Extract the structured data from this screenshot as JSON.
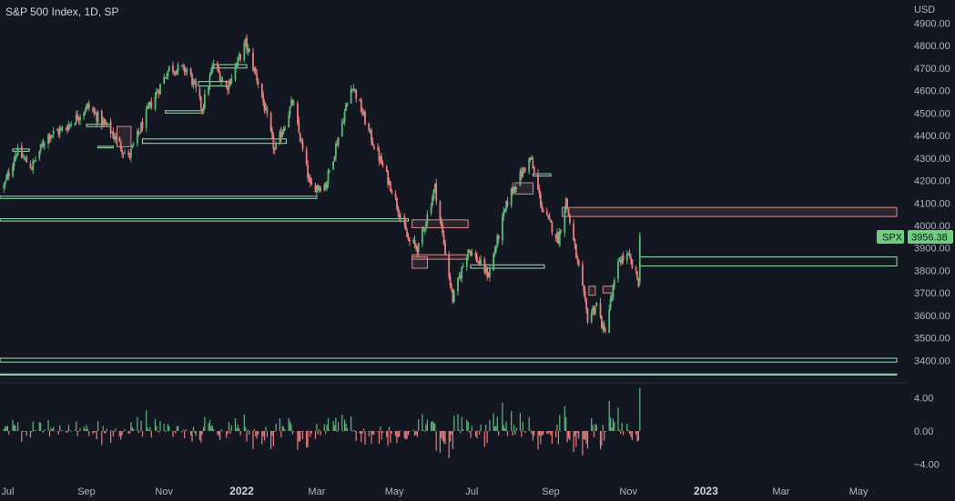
{
  "title": "S&P 500 Index, 1D, SP",
  "currency": "USD",
  "colors": {
    "background": "#131722",
    "up": "#5fb87a",
    "down": "#e57f7f",
    "zone_demand": "#9fe0b3",
    "zone_supply": "#d98c8c",
    "axis_text": "#b2b5be",
    "price_tag_bg": "#6fcf7f"
  },
  "price_tag": {
    "symbol": "SPX",
    "value": "3956.38"
  },
  "chart_data": {
    "type": "candlestick",
    "y_axis": {
      "labels": [
        "4900.00",
        "4800.00",
        "4700.00",
        "4600.00",
        "4500.00",
        "4400.00",
        "4300.00",
        "4200.00",
        "4100.00",
        "4000.00",
        "3900.00",
        "3800.00",
        "3700.00",
        "3600.00",
        "3500.00",
        "3400.00"
      ],
      "range": [
        3380,
        4950
      ]
    },
    "x_axis": {
      "labels": [
        "Jul",
        "Sep",
        "Nov",
        "2022",
        "Mar",
        "May",
        "Jul",
        "Sep",
        "Nov",
        "2023",
        "Mar",
        "May"
      ],
      "bold": [
        "2022",
        "2023"
      ]
    },
    "price_path": [
      [
        "2021-06-28",
        4170
      ],
      [
        "2021-07-08",
        4330
      ],
      [
        "2021-07-20",
        4260
      ],
      [
        "2021-08-01",
        4400
      ],
      [
        "2021-08-15",
        4430
      ],
      [
        "2021-09-02",
        4530
      ],
      [
        "2021-09-20",
        4420
      ],
      [
        "2021-10-04",
        4300
      ],
      [
        "2021-10-20",
        4520
      ],
      [
        "2021-11-05",
        4700
      ],
      [
        "2021-11-20",
        4690
      ],
      [
        "2021-12-01",
        4520
      ],
      [
        "2021-12-10",
        4720
      ],
      [
        "2021-12-20",
        4610
      ],
      [
        "2022-01-04",
        4810
      ],
      [
        "2022-01-15",
        4620
      ],
      [
        "2022-01-27",
        4330
      ],
      [
        "2022-02-10",
        4550
      ],
      [
        "2022-02-24",
        4170
      ],
      [
        "2022-03-08",
        4180
      ],
      [
        "2022-03-29",
        4630
      ],
      [
        "2022-04-12",
        4400
      ],
      [
        "2022-04-30",
        4150
      ],
      [
        "2022-05-12",
        3930
      ],
      [
        "2022-05-20",
        3900
      ],
      [
        "2022-06-02",
        4170
      ],
      [
        "2022-06-16",
        3670
      ],
      [
        "2022-06-28",
        3900
      ],
      [
        "2022-07-14",
        3780
      ],
      [
        "2022-07-30",
        4130
      ],
      [
        "2022-08-16",
        4300
      ],
      [
        "2022-08-26",
        4060
      ],
      [
        "2022-09-07",
        3940
      ],
      [
        "2022-09-13",
        4110
      ],
      [
        "2022-09-30",
        3590
      ],
      [
        "2022-10-07",
        3650
      ],
      [
        "2022-10-13",
        3520
      ],
      [
        "2022-10-25",
        3850
      ],
      [
        "2022-11-01",
        3860
      ],
      [
        "2022-11-09",
        3750
      ],
      [
        "2022-11-10",
        3956
      ]
    ],
    "oscillator": {
      "labels": [
        "4.00",
        "0.00",
        "−4.00"
      ],
      "range": [
        -6,
        5.5
      ],
      "last_value": 5.2
    },
    "zones": [
      {
        "kind": "demand",
        "from": "2021-06-25",
        "to": "2022-03-01",
        "low": 4120,
        "high": 4130
      },
      {
        "kind": "demand",
        "from": "2021-06-25",
        "to": "2022-05-12",
        "low": 4020,
        "high": 4030
      },
      {
        "kind": "demand",
        "from": "2021-10-15",
        "to": "2022-02-05",
        "low": 4365,
        "high": 4385
      },
      {
        "kind": "demand",
        "from": "2021-11-02",
        "to": "2021-12-01",
        "low": 4500,
        "high": 4510
      },
      {
        "kind": "demand",
        "from": "2021-11-28",
        "to": "2021-12-22",
        "low": 4620,
        "high": 4640
      },
      {
        "kind": "demand",
        "from": "2021-12-10",
        "to": "2022-01-05",
        "low": 4700,
        "high": 4715
      },
      {
        "kind": "demand",
        "from": "2021-09-01",
        "to": "2021-09-20",
        "low": 4440,
        "high": 4450
      },
      {
        "kind": "supply",
        "from": "2021-09-25",
        "to": "2021-10-06",
        "low": 4350,
        "high": 4440
      },
      {
        "kind": "demand",
        "from": "2021-09-10",
        "to": "2021-09-22",
        "low": 4345,
        "high": 4352
      },
      {
        "kind": "demand",
        "from": "2021-07-05",
        "to": "2021-07-18",
        "low": 4330,
        "high": 4340
      },
      {
        "kind": "supply",
        "from": "2022-05-15",
        "to": "2022-06-28",
        "low": 3990,
        "high": 4025
      },
      {
        "kind": "supply",
        "from": "2022-05-15",
        "to": "2022-06-28",
        "low": 3850,
        "high": 3870
      },
      {
        "kind": "supply",
        "from": "2022-05-15",
        "to": "2022-05-27",
        "low": 3810,
        "high": 3860
      },
      {
        "kind": "demand",
        "from": "2022-06-30",
        "to": "2022-08-27",
        "low": 3810,
        "high": 3825
      },
      {
        "kind": "supply",
        "from": "2022-08-04",
        "to": "2022-08-18",
        "low": 4140,
        "high": 4190
      },
      {
        "kind": "demand",
        "from": "2022-08-18",
        "to": "2022-09-01",
        "low": 4220,
        "high": 4230
      },
      {
        "kind": "supply",
        "from": "2022-09-10",
        "to": "2023-05-31",
        "low": 4040,
        "high": 4080
      },
      {
        "kind": "demand",
        "from": "2022-11-10",
        "to": "2023-05-31",
        "low": 3820,
        "high": 3860
      },
      {
        "kind": "supply",
        "from": "2022-10-01",
        "to": "2022-10-06",
        "low": 3690,
        "high": 3730
      },
      {
        "kind": "supply",
        "from": "2022-10-12",
        "to": "2022-10-20",
        "low": 3700,
        "high": 3730
      },
      {
        "kind": "demand",
        "from": "2021-06-25",
        "to": "2023-05-31",
        "low": 3393,
        "high": 3410
      },
      {
        "kind": "demand",
        "from": "2021-06-25",
        "to": "2023-05-31",
        "low": 3335,
        "high": 3340
      }
    ]
  }
}
